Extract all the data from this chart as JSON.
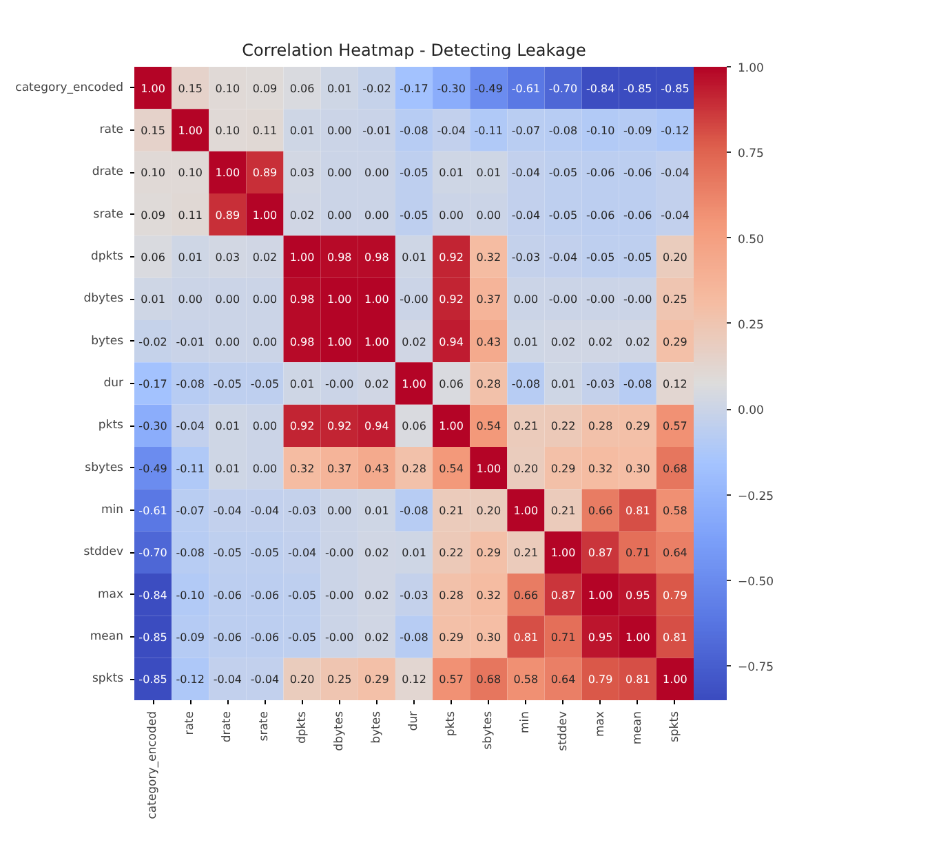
{
  "chart_data": {
    "type": "heatmap",
    "title": "Correlation Heatmap - Detecting Leakage",
    "categories": [
      "category_encoded",
      "rate",
      "drate",
      "srate",
      "dpkts",
      "dbytes",
      "bytes",
      "dur",
      "pkts",
      "sbytes",
      "min",
      "stddev",
      "max",
      "mean",
      "spkts"
    ],
    "y_categories": [
      "category_encoded",
      "rate",
      "drate",
      "srate",
      "dpkts",
      "dbytes",
      "bytes",
      "dur",
      "pkts",
      "sbytes",
      "min",
      "stddev",
      "max",
      "mean",
      "spkts"
    ],
    "cells": [
      [
        1.0,
        0.15,
        0.1,
        0.09,
        0.06,
        0.01,
        -0.02,
        -0.17,
        -0.3,
        -0.49,
        -0.61,
        -0.7,
        -0.84,
        -0.85,
        -0.85
      ],
      [
        0.15,
        1.0,
        0.1,
        0.11,
        0.01,
        0.0,
        -0.01,
        -0.08,
        -0.04,
        -0.11,
        -0.07,
        -0.08,
        -0.1,
        -0.09,
        -0.12
      ],
      [
        0.1,
        0.1,
        1.0,
        0.89,
        0.03,
        0.0,
        0.0,
        -0.05,
        0.01,
        0.01,
        -0.04,
        -0.05,
        -0.06,
        -0.06,
        -0.04
      ],
      [
        0.09,
        0.11,
        0.89,
        1.0,
        0.02,
        0.0,
        0.0,
        -0.05,
        0.0,
        0.0,
        -0.04,
        -0.05,
        -0.06,
        -0.06,
        -0.04
      ],
      [
        0.06,
        0.01,
        0.03,
        0.02,
        1.0,
        0.98,
        0.98,
        0.01,
        0.92,
        0.32,
        -0.03,
        -0.04,
        -0.05,
        -0.05,
        0.2
      ],
      [
        0.01,
        0.0,
        0.0,
        0.0,
        0.98,
        1.0,
        1.0,
        0.0,
        0.92,
        0.37,
        0.0,
        0.0,
        0.0,
        0.0,
        0.25
      ],
      [
        -0.02,
        -0.01,
        0.0,
        0.0,
        0.98,
        1.0,
        1.0,
        0.02,
        0.94,
        0.43,
        0.01,
        0.02,
        0.02,
        0.02,
        0.29
      ],
      [
        -0.17,
        -0.08,
        -0.05,
        -0.05,
        0.01,
        0.0,
        0.02,
        1.0,
        0.06,
        0.28,
        -0.08,
        0.01,
        -0.03,
        -0.08,
        0.12
      ],
      [
        -0.3,
        -0.04,
        0.01,
        0.0,
        0.92,
        0.92,
        0.94,
        0.06,
        1.0,
        0.54,
        0.21,
        0.22,
        0.28,
        0.29,
        0.57
      ],
      [
        -0.49,
        -0.11,
        0.01,
        0.0,
        0.32,
        0.37,
        0.43,
        0.28,
        0.54,
        1.0,
        0.2,
        0.29,
        0.32,
        0.3,
        0.68
      ],
      [
        -0.61,
        -0.07,
        -0.04,
        -0.04,
        -0.03,
        0.0,
        0.01,
        -0.08,
        0.21,
        0.2,
        1.0,
        0.21,
        0.66,
        0.81,
        0.58
      ],
      [
        -0.7,
        -0.08,
        -0.05,
        -0.05,
        -0.04,
        0.0,
        0.02,
        0.01,
        0.22,
        0.29,
        0.21,
        1.0,
        0.87,
        0.71,
        0.64
      ],
      [
        -0.84,
        -0.1,
        -0.06,
        -0.06,
        -0.05,
        0.0,
        0.02,
        -0.03,
        0.28,
        0.32,
        0.66,
        0.87,
        1.0,
        0.95,
        0.79
      ],
      [
        -0.85,
        -0.09,
        -0.06,
        -0.06,
        -0.05,
        0.0,
        0.02,
        -0.08,
        0.29,
        0.3,
        0.81,
        0.71,
        0.95,
        1.0,
        0.81
      ],
      [
        -0.85,
        -0.12,
        -0.04,
        -0.04,
        0.2,
        0.25,
        0.29,
        0.12,
        0.57,
        0.68,
        0.58,
        0.64,
        0.79,
        0.81,
        1.0
      ]
    ],
    "cell_labels": [
      [
        "1.00",
        "0.15",
        "0.10",
        "0.09",
        "0.06",
        "0.01",
        "-0.02",
        "-0.17",
        "-0.30",
        "-0.49",
        "-0.61",
        "-0.70",
        "-0.84",
        "-0.85",
        "-0.85"
      ],
      [
        "0.15",
        "1.00",
        "0.10",
        "0.11",
        "0.01",
        "0.00",
        "-0.01",
        "-0.08",
        "-0.04",
        "-0.11",
        "-0.07",
        "-0.08",
        "-0.10",
        "-0.09",
        "-0.12"
      ],
      [
        "0.10",
        "0.10",
        "1.00",
        "0.89",
        "0.03",
        "0.00",
        "0.00",
        "-0.05",
        "0.01",
        "0.01",
        "-0.04",
        "-0.05",
        "-0.06",
        "-0.06",
        "-0.04"
      ],
      [
        "0.09",
        "0.11",
        "0.89",
        "1.00",
        "0.02",
        "0.00",
        "0.00",
        "-0.05",
        "0.00",
        "0.00",
        "-0.04",
        "-0.05",
        "-0.06",
        "-0.06",
        "-0.04"
      ],
      [
        "0.06",
        "0.01",
        "0.03",
        "0.02",
        "1.00",
        "0.98",
        "0.98",
        "0.01",
        "0.92",
        "0.32",
        "-0.03",
        "-0.04",
        "-0.05",
        "-0.05",
        "0.20"
      ],
      [
        "0.01",
        "0.00",
        "0.00",
        "0.00",
        "0.98",
        "1.00",
        "1.00",
        "-0.00",
        "0.92",
        "0.37",
        "0.00",
        "-0.00",
        "-0.00",
        "-0.00",
        "0.25"
      ],
      [
        "-0.02",
        "-0.01",
        "0.00",
        "0.00",
        "0.98",
        "1.00",
        "1.00",
        "0.02",
        "0.94",
        "0.43",
        "0.01",
        "0.02",
        "0.02",
        "0.02",
        "0.29"
      ],
      [
        "-0.17",
        "-0.08",
        "-0.05",
        "-0.05",
        "0.01",
        "-0.00",
        "0.02",
        "1.00",
        "0.06",
        "0.28",
        "-0.08",
        "0.01",
        "-0.03",
        "-0.08",
        "0.12"
      ],
      [
        "-0.30",
        "-0.04",
        "0.01",
        "0.00",
        "0.92",
        "0.92",
        "0.94",
        "0.06",
        "1.00",
        "0.54",
        "0.21",
        "0.22",
        "0.28",
        "0.29",
        "0.57"
      ],
      [
        "-0.49",
        "-0.11",
        "0.01",
        "0.00",
        "0.32",
        "0.37",
        "0.43",
        "0.28",
        "0.54",
        "1.00",
        "0.20",
        "0.29",
        "0.32",
        "0.30",
        "0.68"
      ],
      [
        "-0.61",
        "-0.07",
        "-0.04",
        "-0.04",
        "-0.03",
        "0.00",
        "0.01",
        "-0.08",
        "0.21",
        "0.20",
        "1.00",
        "0.21",
        "0.66",
        "0.81",
        "0.58"
      ],
      [
        "-0.70",
        "-0.08",
        "-0.05",
        "-0.05",
        "-0.04",
        "-0.00",
        "0.02",
        "0.01",
        "0.22",
        "0.29",
        "0.21",
        "1.00",
        "0.87",
        "0.71",
        "0.64"
      ],
      [
        "-0.84",
        "-0.10",
        "-0.06",
        "-0.06",
        "-0.05",
        "-0.00",
        "0.02",
        "-0.03",
        "0.28",
        "0.32",
        "0.66",
        "0.87",
        "1.00",
        "0.95",
        "0.79"
      ],
      [
        "-0.85",
        "-0.09",
        "-0.06",
        "-0.06",
        "-0.05",
        "-0.00",
        "0.02",
        "-0.08",
        "0.29",
        "0.30",
        "0.81",
        "0.71",
        "0.95",
        "1.00",
        "0.81"
      ],
      [
        "-0.85",
        "-0.12",
        "-0.04",
        "-0.04",
        "0.20",
        "0.25",
        "0.29",
        "0.12",
        "0.57",
        "0.68",
        "0.58",
        "0.64",
        "0.79",
        "0.81",
        "1.00"
      ]
    ],
    "clim": [
      -0.85,
      1.0
    ],
    "cticks": [
      {
        "value": -0.75,
        "label": "−0.75"
      },
      {
        "value": -0.5,
        "label": "−0.50"
      },
      {
        "value": -0.25,
        "label": "−0.25"
      },
      {
        "value": 0,
        "label": "0.00"
      },
      {
        "value": 0.25,
        "label": "0.25"
      },
      {
        "value": 0.5,
        "label": "0.50"
      },
      {
        "value": 0.75,
        "label": "0.75"
      },
      {
        "value": 1.0,
        "label": "1.00"
      }
    ]
  }
}
